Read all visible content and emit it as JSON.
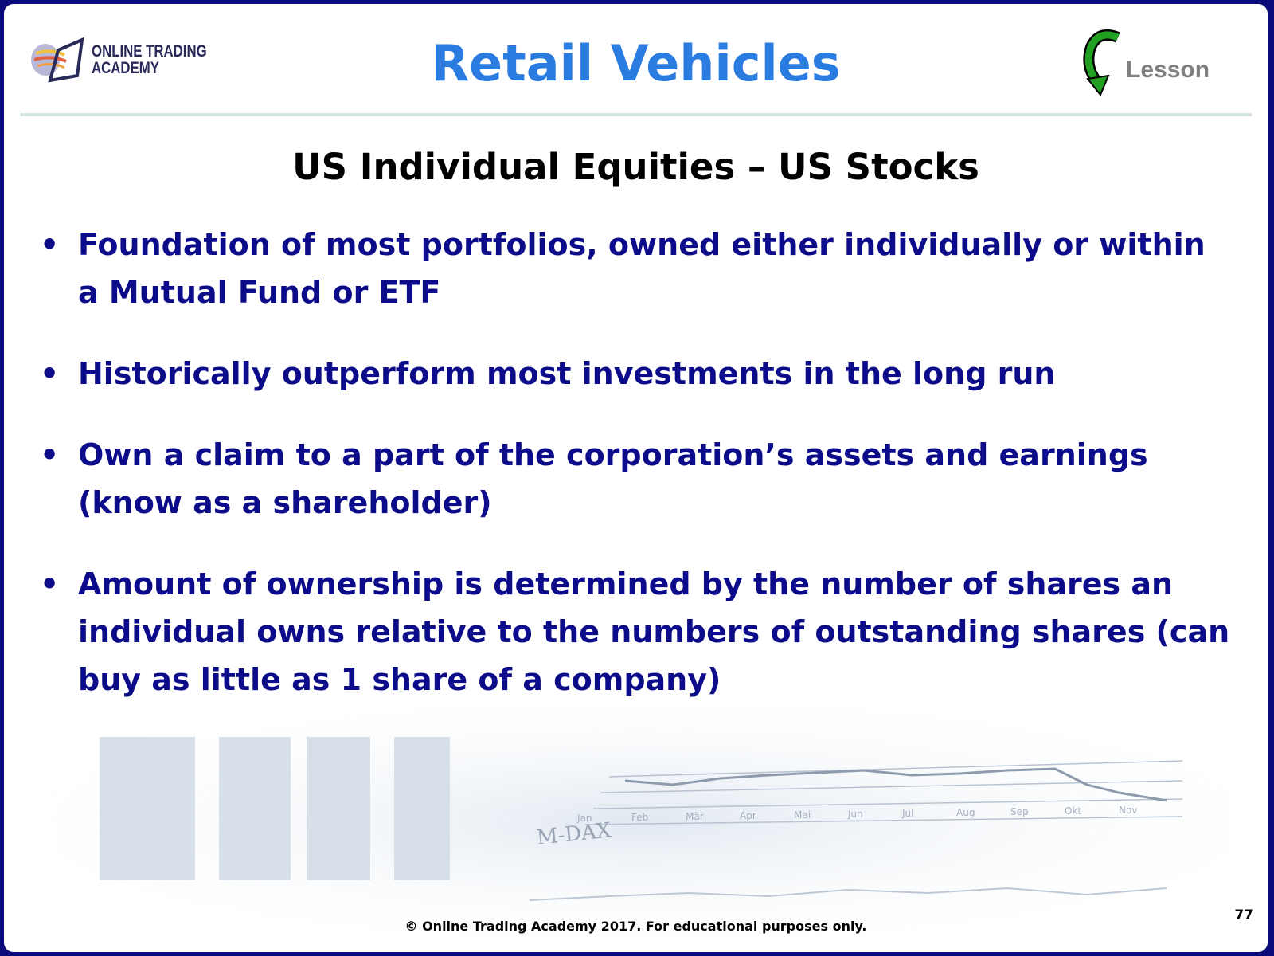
{
  "header": {
    "logo_text_line1": "ONLINE TRADING",
    "logo_text_line2": "ACADEMY",
    "title": "Retail Vehicles",
    "lesson_label": "Lesson",
    "lesson_icon": "green-curved-arrow-icon"
  },
  "subtitle": "US Individual Equities – US Stocks",
  "bullets": [
    {
      "text": "Foundation of most portfolios, owned either individually or within a Mutual Fund or ETF"
    },
    {
      "text": "Historically outperform most investments in the long run"
    },
    {
      "text": "Own a claim to a part of the corporation’s assets and earnings (know as a shareholder)"
    },
    {
      "text": "Amount of ownership is determined by the number of shares an individual owns relative to the numbers of outstanding shares (can buy as little as 1 share of a company)"
    }
  ],
  "background_image": {
    "label": "M-DAX",
    "months": [
      "Jan",
      "Feb",
      "Mär",
      "Apr",
      "Mai",
      "Jun",
      "Jul",
      "Aug",
      "Sep",
      "Okt",
      "Nov"
    ]
  },
  "footer": {
    "copyright": "© Online Trading Academy 2017. For educational purposes only.",
    "page_number": "77"
  },
  "colors": {
    "border": "#0a0a7a",
    "title": "#2b7ce0",
    "bullet_text": "#0c0c8a",
    "lesson": "#808080"
  }
}
